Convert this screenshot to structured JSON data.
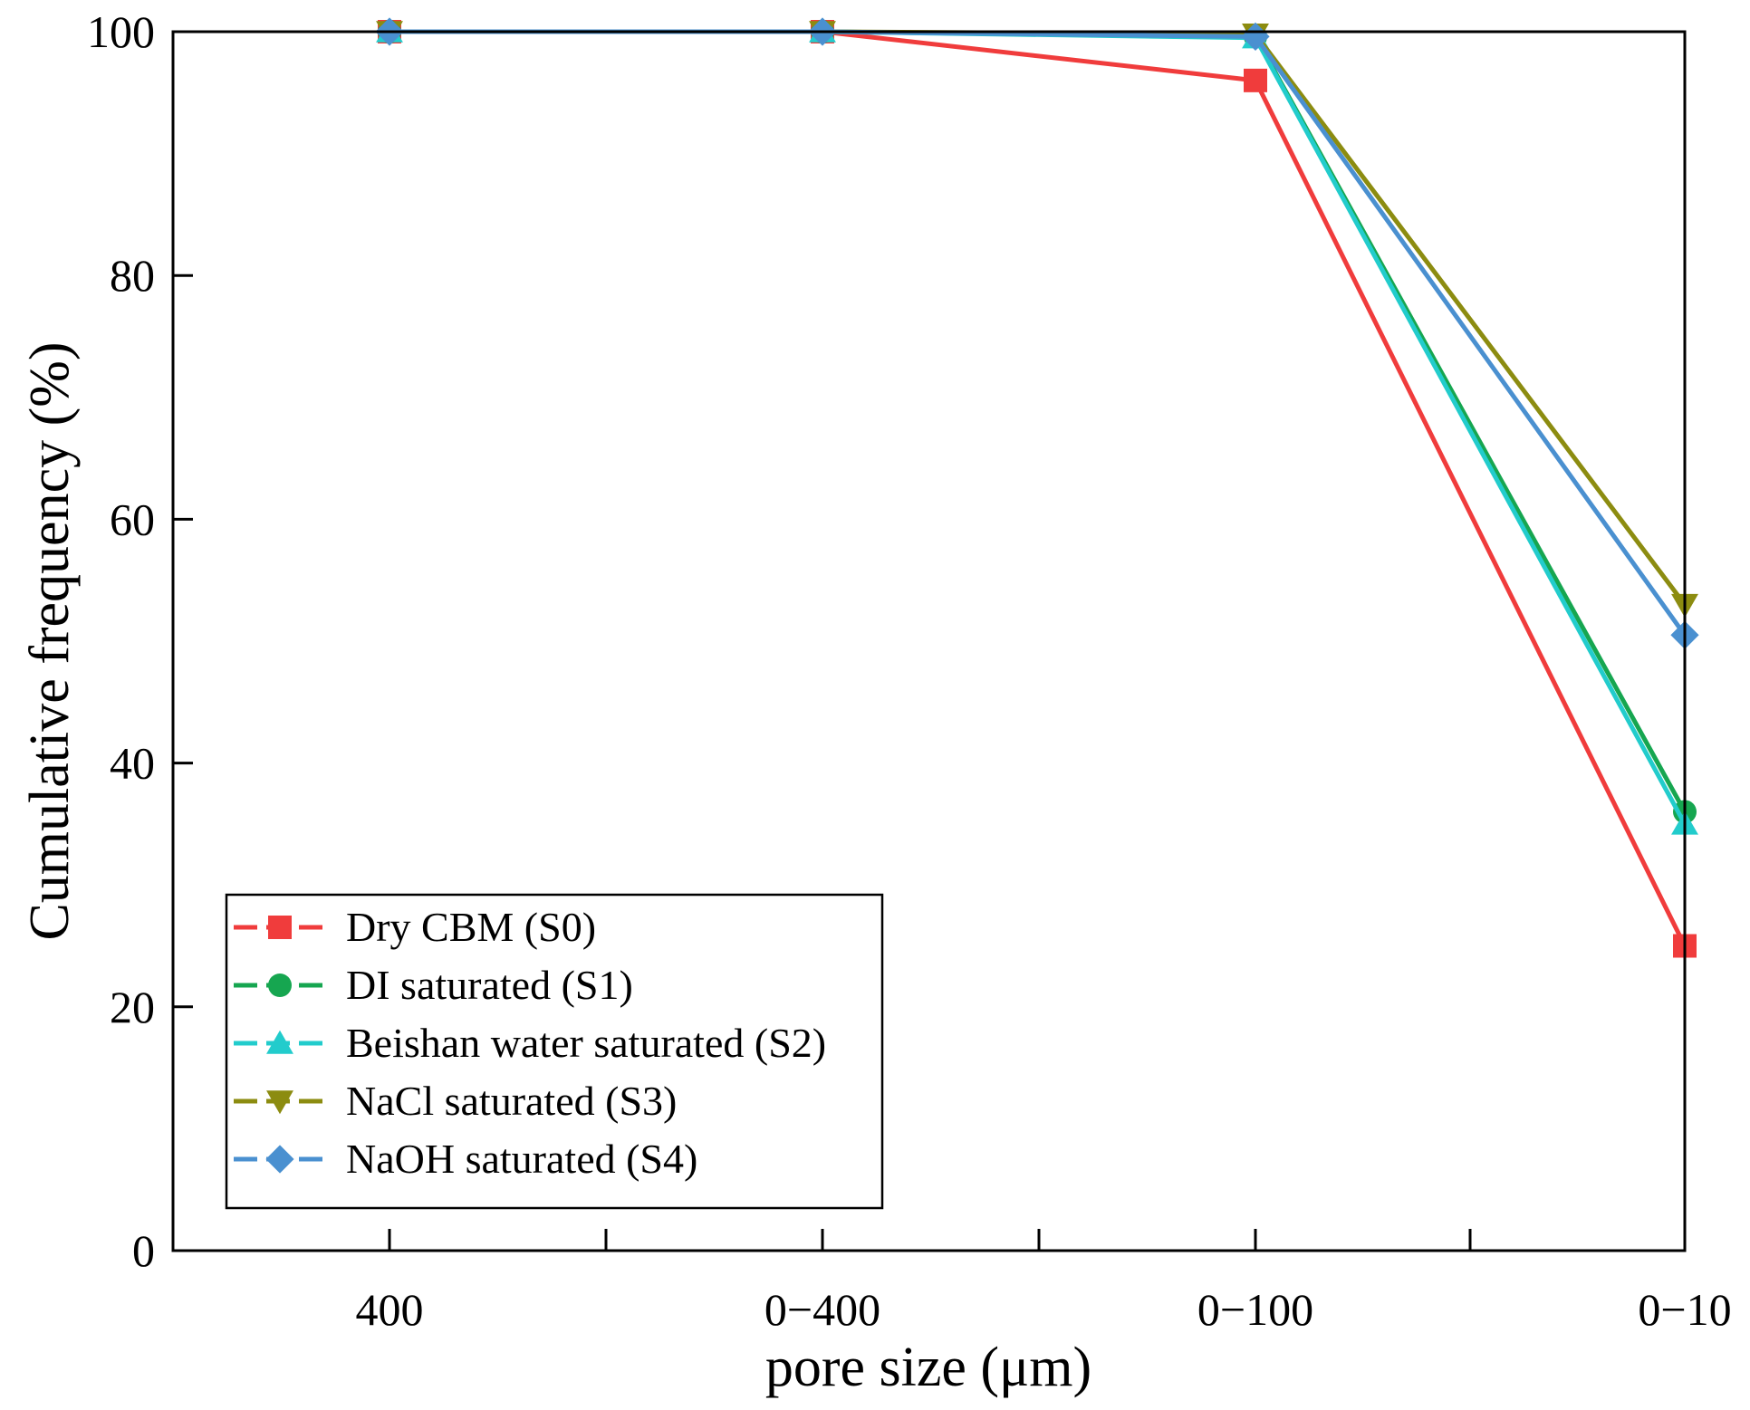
{
  "chart_data": {
    "type": "line",
    "title": "",
    "xlabel": "pore size (μm)",
    "ylabel": "Cumulative frequency (%)",
    "categories": [
      "400",
      "0−400",
      "0−100",
      "0−10"
    ],
    "ylim": [
      0,
      100
    ],
    "yticks": [
      0,
      20,
      40,
      60,
      80,
      100
    ],
    "grid": false,
    "legend_position": "bottom-left",
    "series": [
      {
        "name": "Dry CBM (S0)",
        "color": "#f03c3c",
        "marker": "square",
        "values": [
          100,
          100,
          96,
          25
        ]
      },
      {
        "name": "DI saturated (S1)",
        "color": "#16a650",
        "marker": "circle",
        "values": [
          100,
          100,
          99.6,
          36
        ]
      },
      {
        "name": "Beishan water saturated (S2)",
        "color": "#22cccc",
        "marker": "triangle-up",
        "values": [
          100,
          100,
          99.5,
          35
        ]
      },
      {
        "name": "NaCl saturated (S3)",
        "color": "#8c8c10",
        "marker": "triangle-down",
        "values": [
          100,
          100,
          99.8,
          53
        ]
      },
      {
        "name": "NaOH saturated (S4)",
        "color": "#4a90d0",
        "marker": "diamond",
        "values": [
          100,
          100,
          99.6,
          50.5
        ]
      }
    ]
  }
}
